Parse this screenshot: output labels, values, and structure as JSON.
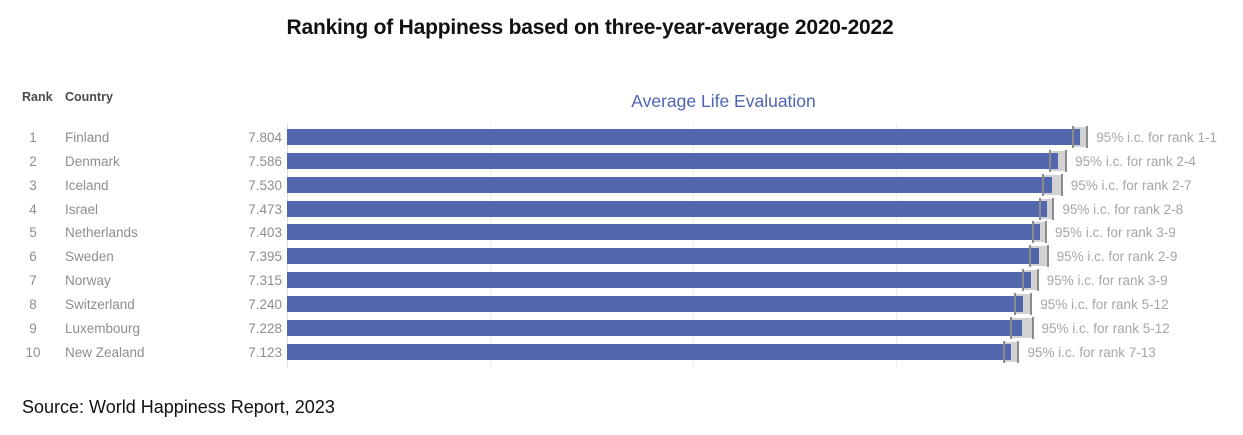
{
  "page": {
    "background": "#ffffff"
  },
  "chart_data": {
    "type": "bar",
    "orientation": "horizontal",
    "title": "Ranking of Happiness based on three-year-average 2020-2022",
    "axis_title": "Average Life Evaluation",
    "source": "Source: World Happiness Report, 2023",
    "column_headers": {
      "rank": "Rank",
      "country": "Country"
    },
    "xlim": [
      0,
      8.8
    ],
    "gridlines_x": [
      0,
      2,
      4,
      6
    ],
    "legend": "none",
    "colors": {
      "bar": "#5266ae",
      "ci_band": "#d2d2d2",
      "ci_tick": "#8b8b8b",
      "axis_title": "#4d64b4",
      "row_text": "#8e8e8e",
      "ci_label_text": "#a6a6a6",
      "title_text": "#111111"
    },
    "rows": [
      {
        "rank": "1",
        "country": "Finland",
        "value": 7.804,
        "value_label": "7.804",
        "ci_low": 7.736,
        "ci_high": 7.872,
        "ci_label": "95% i.c. for rank 1-1"
      },
      {
        "rank": "2",
        "country": "Denmark",
        "value": 7.586,
        "value_label": "7.586",
        "ci_low": 7.506,
        "ci_high": 7.665,
        "ci_label": "95% i.c. for rank 2-4"
      },
      {
        "rank": "3",
        "country": "Iceland",
        "value": 7.53,
        "value_label": "7.530",
        "ci_low": 7.438,
        "ci_high": 7.622,
        "ci_label": "95% i.c. for rank 2-7"
      },
      {
        "rank": "4",
        "country": "Israel",
        "value": 7.473,
        "value_label": "7.473",
        "ci_low": 7.406,
        "ci_high": 7.539,
        "ci_label": "95% i.c. for rank 2-8"
      },
      {
        "rank": "5",
        "country": "Netherlands",
        "value": 7.403,
        "value_label": "7.403",
        "ci_low": 7.339,
        "ci_high": 7.467,
        "ci_label": "95% i.c. for rank 3-9"
      },
      {
        "rank": "6",
        "country": "Sweden",
        "value": 7.395,
        "value_label": "7.395",
        "ci_low": 7.307,
        "ci_high": 7.483,
        "ci_label": "95% i.c. for rank 2-9"
      },
      {
        "rank": "7",
        "country": "Norway",
        "value": 7.315,
        "value_label": "7.315",
        "ci_low": 7.243,
        "ci_high": 7.386,
        "ci_label": "95% i.c. for rank 3-9"
      },
      {
        "rank": "8",
        "country": "Switzerland",
        "value": 7.24,
        "value_label": "7.240",
        "ci_low": 7.158,
        "ci_high": 7.322,
        "ci_label": "95% i.c. for rank 5-12"
      },
      {
        "rank": "9",
        "country": "Luxembourg",
        "value": 7.228,
        "value_label": "7.228",
        "ci_low": 7.121,
        "ci_high": 7.334,
        "ci_label": "95% i.c. for rank 5-12"
      },
      {
        "rank": "10",
        "country": "New Zealand",
        "value": 7.123,
        "value_label": "7.123",
        "ci_low": 7.049,
        "ci_high": 7.196,
        "ci_label": "95% i.c. for rank 7-13"
      }
    ]
  }
}
